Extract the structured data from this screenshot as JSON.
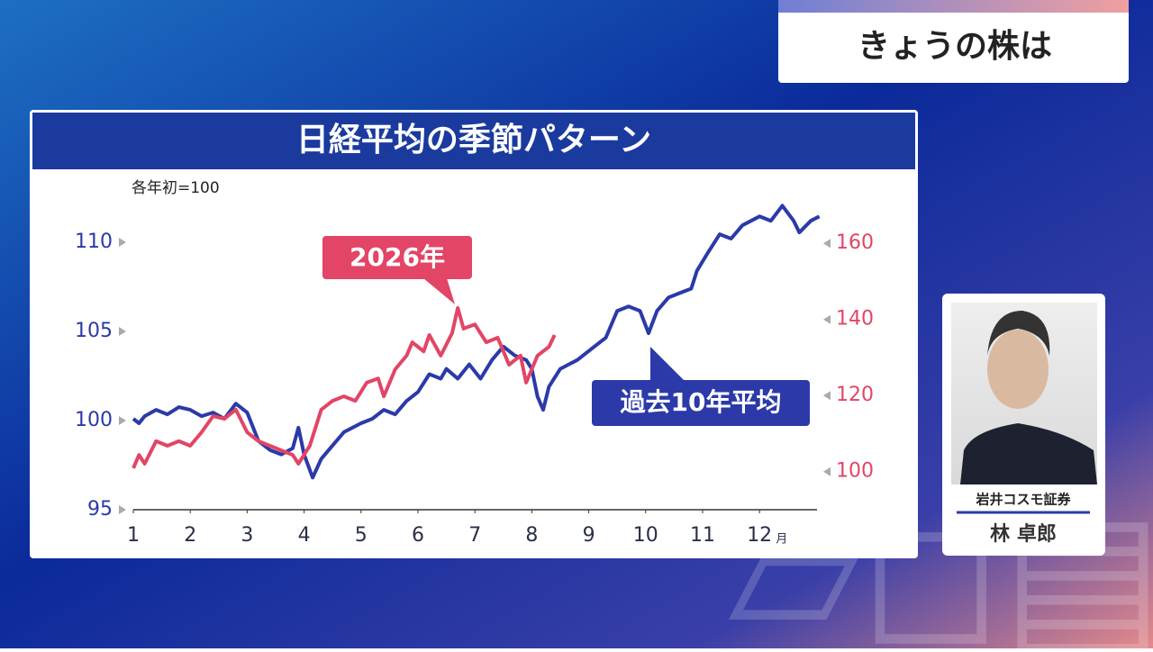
{
  "header": {
    "title": "きょうの株は"
  },
  "chart_data": {
    "type": "line",
    "title": "日経平均の季節パターン",
    "y_label": "各年初=100",
    "x_unit": "月",
    "xlim": [
      1,
      13.1
    ],
    "xticks": [
      1,
      2,
      3,
      4,
      5,
      6,
      7,
      8,
      9,
      10,
      11,
      12
    ],
    "ylim": [
      95,
      112.5
    ],
    "yticks": [
      95,
      100,
      105,
      110
    ],
    "y2lim": [
      90,
      172
    ],
    "y2ticks": [
      100,
      120,
      140,
      160
    ],
    "series": [
      {
        "name": "過去10年平均",
        "color": "#2b3aa8",
        "axis": "y",
        "x": [
          1.0,
          1.1,
          1.2,
          1.4,
          1.6,
          1.8,
          2.0,
          2.2,
          2.4,
          2.6,
          2.8,
          3.0,
          3.2,
          3.4,
          3.6,
          3.8,
          3.9,
          4.0,
          4.15,
          4.3,
          4.5,
          4.7,
          5.0,
          5.2,
          5.4,
          5.6,
          5.8,
          6.0,
          6.2,
          6.4,
          6.5,
          6.7,
          6.9,
          7.1,
          7.3,
          7.5,
          7.7,
          7.9,
          8.0,
          8.1,
          8.2,
          8.3,
          8.5,
          8.8,
          9.1,
          9.3,
          9.5,
          9.7,
          9.9,
          10.05,
          10.2,
          10.4,
          10.6,
          10.8,
          10.9,
          11.1,
          11.3,
          11.5,
          11.7,
          12.0,
          12.2,
          12.4,
          12.6,
          12.7,
          12.9,
          13.05
        ],
        "values": [
          100.1,
          99.85,
          100.25,
          100.6,
          100.35,
          100.75,
          100.6,
          100.25,
          100.45,
          100.1,
          100.95,
          100.45,
          98.85,
          98.35,
          98.1,
          98.45,
          99.6,
          98.1,
          96.8,
          97.85,
          98.6,
          99.35,
          99.85,
          100.1,
          100.6,
          100.35,
          101.1,
          101.6,
          102.6,
          102.35,
          102.9,
          102.35,
          103.15,
          102.35,
          103.4,
          104.15,
          103.65,
          103.4,
          102.9,
          101.35,
          100.6,
          101.9,
          102.9,
          103.4,
          104.15,
          104.65,
          106.15,
          106.4,
          106.15,
          104.9,
          106.15,
          106.9,
          107.15,
          107.4,
          108.4,
          109.45,
          110.45,
          110.2,
          110.95,
          111.45,
          111.2,
          112.05,
          111.2,
          110.55,
          111.2,
          111.45
        ]
      },
      {
        "name": "2026年",
        "color": "#e24566",
        "axis": "y2",
        "x": [
          1.0,
          1.1,
          1.2,
          1.4,
          1.6,
          1.8,
          2.0,
          2.2,
          2.4,
          2.6,
          2.8,
          3.0,
          3.2,
          3.4,
          3.6,
          3.8,
          3.9,
          4.1,
          4.3,
          4.5,
          4.7,
          4.9,
          5.1,
          5.3,
          5.4,
          5.6,
          5.8,
          5.9,
          6.1,
          6.2,
          6.4,
          6.6,
          6.7,
          6.8,
          7.0,
          7.2,
          7.4,
          7.6,
          7.8,
          7.9,
          8.1,
          8.3,
          8.4
        ],
        "values": [
          100.9,
          104.4,
          102.1,
          108.0,
          106.8,
          108.0,
          106.8,
          110.35,
          114.6,
          113.9,
          116.3,
          110.35,
          108.0,
          106.8,
          105.6,
          104.4,
          102.1,
          106.8,
          116.3,
          118.6,
          119.8,
          118.6,
          123.4,
          124.5,
          119.8,
          126.9,
          130.5,
          134.0,
          131.6,
          135.9,
          130.5,
          136.4,
          143.0,
          137.6,
          138.7,
          134.0,
          135.2,
          128.1,
          130.5,
          123.4,
          130.5,
          132.8,
          135.9
        ]
      }
    ]
  },
  "guest": {
    "company": "岩井コスモ証券",
    "name": "林 卓郎"
  }
}
